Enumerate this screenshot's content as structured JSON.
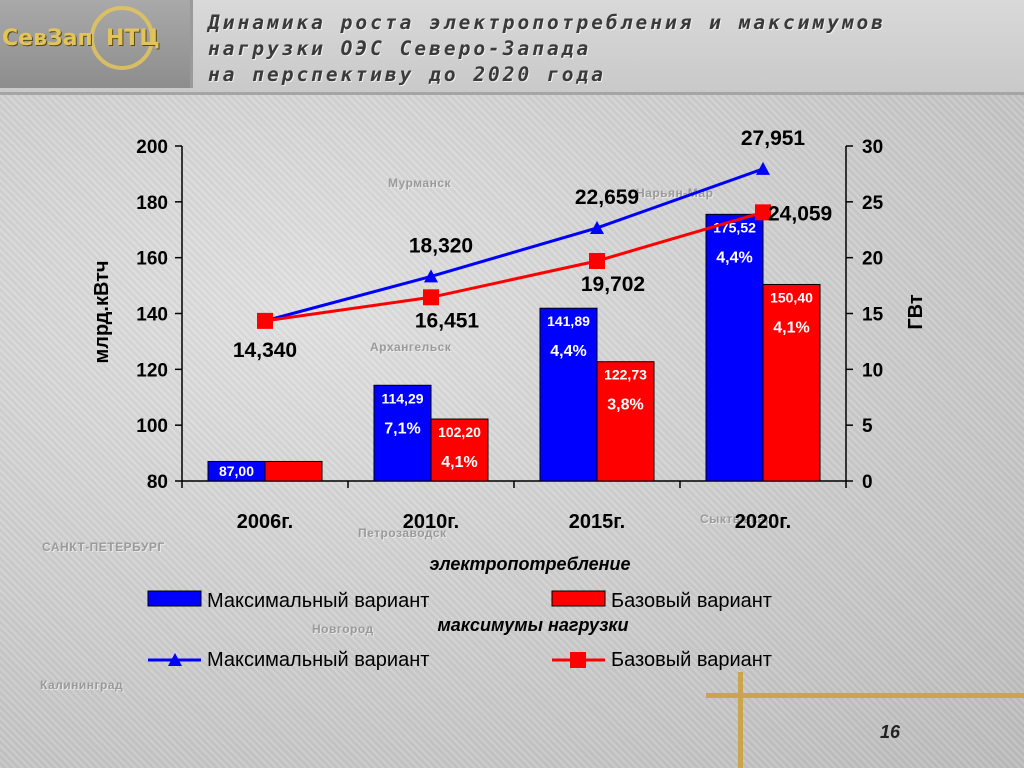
{
  "header": {
    "logo_left": "СевЗап",
    "logo_right": "НТЦ",
    "title_lines": [
      "Динамика роста электропотребления и максимумов",
      "нагрузки ОЭС Северо-Запада",
      "на перспективу до 2020 года"
    ]
  },
  "map_labels": [
    "Мурманск",
    "Нарьян-Мар",
    "Архангельск",
    "Петрозаводск",
    "Сыктывкар",
    "САНКТ-ПЕТЕРБУРГ",
    "Новгород",
    "Калининград"
  ],
  "page_number": "16",
  "colors": {
    "blue": "#0000ff",
    "red": "#ff0000",
    "blue_line": "#0000ff",
    "red_line": "#ff0000"
  },
  "chart_data": {
    "type": "bar",
    "categories": [
      "2006г.",
      "2010г.",
      "2015г.",
      "2020г."
    ],
    "y_left": {
      "label": "млрд.кВтч",
      "min": 80,
      "max": 200,
      "ticks": [
        80,
        100,
        120,
        140,
        160,
        180,
        200
      ]
    },
    "y_right": {
      "label": "ГВт",
      "min": 0,
      "max": 30,
      "ticks": [
        0,
        5,
        10,
        15,
        20,
        25,
        30
      ]
    },
    "bar_group_title": "электропотребление",
    "bar_series": [
      {
        "name": "Максимальный вариант",
        "values": [
          87.0,
          114.29,
          141.89,
          175.52
        ],
        "value_labels": [
          "87,00",
          "114,29",
          "141,89",
          "175,52"
        ],
        "growth_labels": [
          "",
          "7,1%",
          "4,4%",
          "4,4%"
        ]
      },
      {
        "name": "Базовый вариант",
        "values": [
          87.0,
          102.2,
          122.73,
          150.4
        ],
        "value_labels": [
          "",
          "102,20",
          "122,73",
          "150,40"
        ],
        "growth_labels": [
          "",
          "4,1%",
          "3,8%",
          "4,1%"
        ]
      }
    ],
    "line_group_title": "максимумы нагрузки",
    "line_series": [
      {
        "name": "Максимальный вариант",
        "values": [
          14.34,
          18.32,
          22.659,
          27.951
        ],
        "value_labels": [
          "14,340",
          "18,320",
          "22,659",
          "27,951"
        ]
      },
      {
        "name": "Базовый вариант",
        "values": [
          14.34,
          16.451,
          19.702,
          24.059
        ],
        "value_labels": [
          "",
          "16,451",
          "19,702",
          "24,059"
        ]
      }
    ],
    "grid": false
  }
}
